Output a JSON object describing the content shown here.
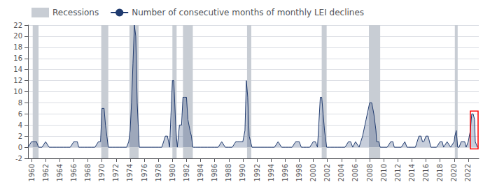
{
  "chart_data": {
    "type": "area",
    "x": [
      1959.5,
      1960.0,
      1960.3,
      1960.5,
      1960.7,
      1961.0,
      1961.2,
      1961.5,
      1962.0,
      1962.5,
      1963.0,
      1963.5,
      1964.0,
      1964.5,
      1965.0,
      1965.5,
      1966.0,
      1966.3,
      1966.5,
      1966.7,
      1967.0,
      1967.3,
      1967.5,
      1968.0,
      1968.5,
      1969.0,
      1969.5,
      1969.8,
      1970.0,
      1970.3,
      1970.5,
      1970.7,
      1970.9,
      1971.0,
      1971.5,
      1972.0,
      1972.5,
      1973.0,
      1973.5,
      1973.8,
      1974.0,
      1974.2,
      1974.4,
      1974.6,
      1974.8,
      1975.0,
      1975.3,
      1975.5,
      1976.0,
      1976.5,
      1977.0,
      1977.5,
      1978.0,
      1978.5,
      1979.0,
      1979.3,
      1979.6,
      1980.0,
      1980.2,
      1980.5,
      1980.7,
      1981.0,
      1981.3,
      1981.5,
      1981.7,
      1982.0,
      1982.2,
      1982.5,
      1982.7,
      1982.9,
      1983.0,
      1983.3,
      1983.5,
      1984.0,
      1984.5,
      1985.0,
      1985.5,
      1986.0,
      1986.5,
      1987.0,
      1987.5,
      1988.0,
      1988.5,
      1989.0,
      1989.3,
      1989.6,
      1990.0,
      1990.3,
      1990.5,
      1990.7,
      1990.9,
      1991.1,
      1991.3,
      1991.5,
      1992.0,
      1992.5,
      1993.0,
      1993.5,
      1994.0,
      1994.5,
      1995.0,
      1995.5,
      1996.0,
      1996.5,
      1997.0,
      1997.5,
      1998.0,
      1998.3,
      1998.6,
      1999.0,
      1999.5,
      2000.0,
      2000.3,
      2000.6,
      2001.0,
      2001.2,
      2001.4,
      2001.6,
      2001.8,
      2001.9,
      2002.0,
      2002.3,
      2002.5,
      2003.0,
      2003.5,
      2004.0,
      2004.5,
      2005.0,
      2005.3,
      2005.6,
      2006.0,
      2006.5,
      2007.0,
      2007.5,
      2008.0,
      2008.3,
      2008.6,
      2008.9,
      2009.0,
      2009.3,
      2009.5,
      2010.0,
      2010.5,
      2011.0,
      2011.3,
      2011.5,
      2012.0,
      2012.5,
      2013.0,
      2013.3,
      2013.5,
      2014.0,
      2014.5,
      2015.0,
      2015.3,
      2015.5,
      2015.7,
      2016.0,
      2016.3,
      2016.5,
      2016.7,
      2017.0,
      2017.5,
      2018.0,
      2018.3,
      2018.5,
      2019.0,
      2019.5,
      2020.0,
      2020.1,
      2020.3,
      2020.5,
      2020.7,
      2021.0,
      2021.3,
      2021.5,
      2021.7,
      2022.0,
      2022.3,
      2022.5,
      2022.7,
      2022.9,
      2023.0,
      2023.3
    ],
    "series": [
      {
        "name": "Number of consecutive months of monthly LEI declines",
        "color": "#1f3a6e",
        "values": [
          0,
          1,
          1,
          1,
          1,
          0,
          0,
          0,
          1,
          0,
          0,
          0,
          0,
          0,
          0,
          0,
          1,
          1,
          1,
          0,
          0,
          0,
          0,
          0,
          0,
          0,
          1,
          1,
          7,
          7,
          4,
          2,
          0,
          0,
          0,
          0,
          0,
          0,
          0,
          1,
          3,
          8,
          15,
          22,
          20,
          8,
          0,
          0,
          0,
          0,
          0,
          0,
          0,
          0,
          2,
          2,
          0,
          12,
          12,
          3,
          0,
          4,
          4,
          9,
          9,
          9,
          5,
          3,
          2,
          0,
          0,
          0,
          0,
          0,
          0,
          0,
          0,
          0,
          0,
          1,
          0,
          0,
          0,
          1,
          1,
          1,
          1,
          3,
          12,
          9,
          2,
          1,
          0,
          0,
          0,
          0,
          0,
          0,
          0,
          0,
          1,
          0,
          0,
          0,
          0,
          1,
          1,
          0,
          0,
          0,
          0,
          1,
          1,
          0,
          9,
          9,
          6,
          3,
          1,
          0,
          0,
          0,
          0,
          0,
          0,
          0,
          0,
          1,
          1,
          0,
          1,
          0,
          2,
          5,
          8,
          8,
          6,
          3,
          1,
          1,
          0,
          0,
          0,
          1,
          1,
          0,
          0,
          0,
          1,
          0,
          0,
          0,
          0,
          2,
          2,
          1,
          1,
          2,
          2,
          1,
          0,
          0,
          0,
          1,
          1,
          0,
          1,
          0,
          1,
          2,
          3,
          0,
          0,
          1,
          1,
          1,
          0,
          1,
          3,
          6,
          6,
          5,
          1,
          0
        ]
      }
    ],
    "recessions": {
      "name": "Recessions",
      "color": "#c8cdd4",
      "periods": [
        [
          1960.17,
          1961.0
        ],
        [
          1969.9,
          1970.9
        ],
        [
          1973.9,
          1975.2
        ],
        [
          1980.0,
          1980.6
        ],
        [
          1981.5,
          1982.9
        ],
        [
          1990.6,
          1991.2
        ],
        [
          2001.2,
          2001.9
        ],
        [
          2007.9,
          2009.5
        ],
        [
          2020.1,
          2020.5
        ]
      ]
    },
    "annotation_box": {
      "color": "red",
      "x": [
        2022.3,
        2023.4
      ],
      "y": [
        -0.3,
        6.5
      ]
    },
    "xlim": [
      1959.5,
      2023.5
    ],
    "xticks": [
      1960,
      1962,
      1964,
      1966,
      1968,
      1970,
      1972,
      1974,
      1976,
      1978,
      1980,
      1982,
      1984,
      1986,
      1988,
      1990,
      1992,
      1994,
      1996,
      1998,
      2000,
      2002,
      2004,
      2006,
      2008,
      2010,
      2012,
      2014,
      2016,
      2018,
      2020,
      2022
    ],
    "ylim": [
      -2,
      22
    ],
    "yticks": [
      -2,
      0,
      2,
      4,
      6,
      8,
      10,
      12,
      14,
      16,
      18,
      20,
      22
    ],
    "grid": true
  }
}
